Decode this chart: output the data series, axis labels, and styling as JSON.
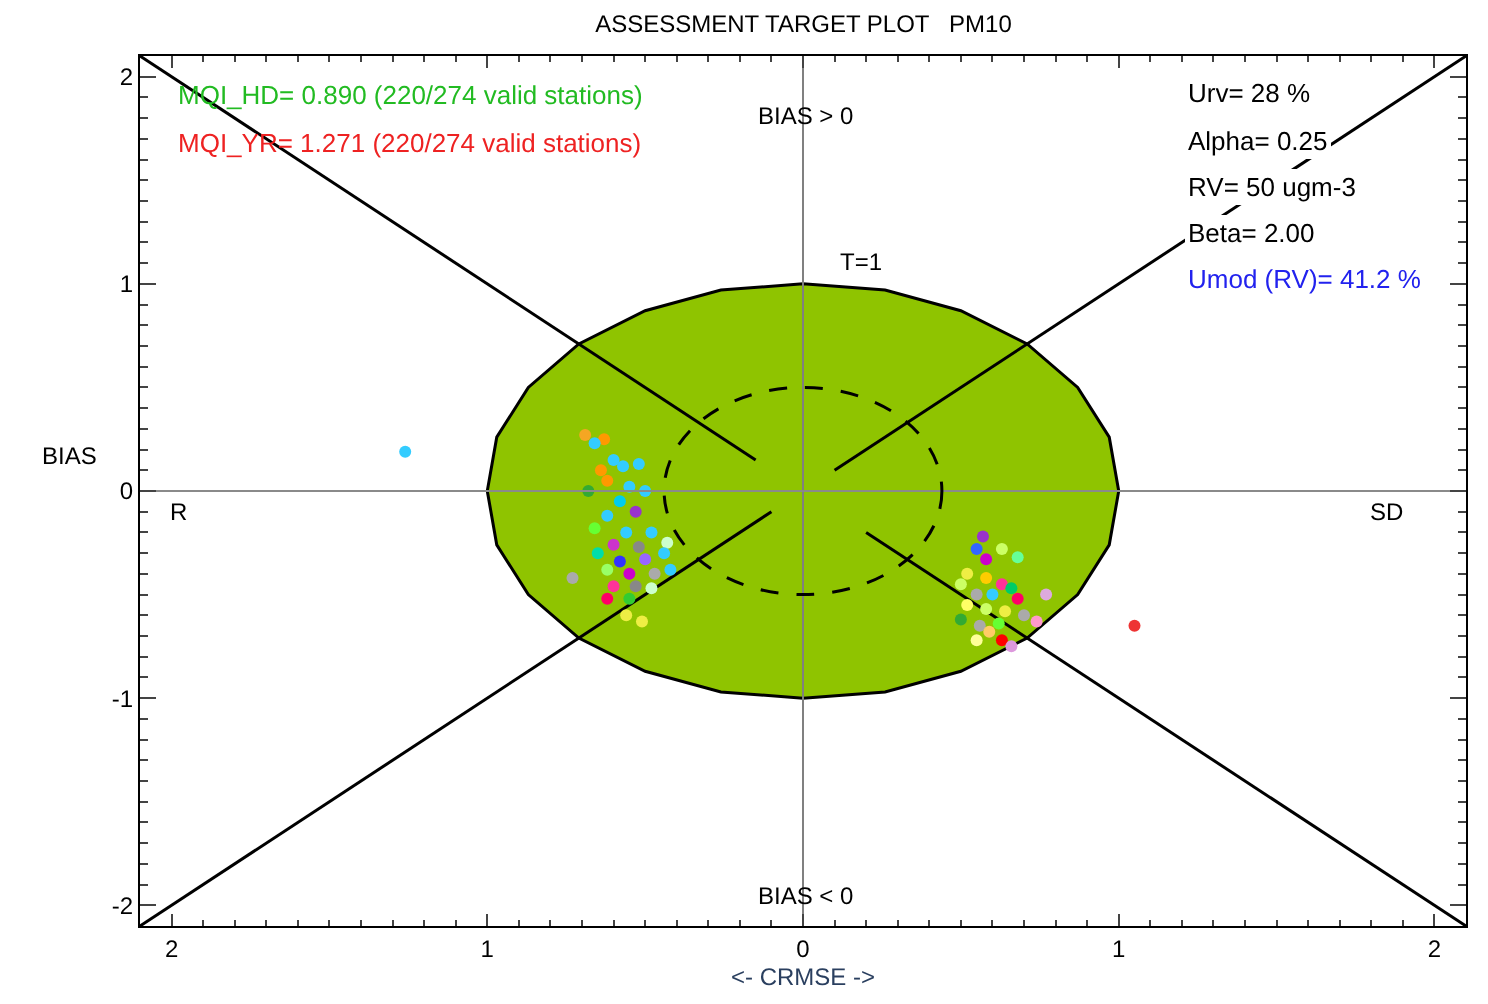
{
  "chart_data": {
    "type": "scatter",
    "title": "ASSESSMENT TARGET PLOT   PM10",
    "xlabel": "<- CRMSE ->",
    "ylabel": "BIAS",
    "annotations": [
      "MQI_HD= 0.890 (220/274 valid stations)",
      "MQI_YR= 1.271 (220/274 valid stations)",
      "BIAS > 0",
      "T=1",
      "R",
      "SD",
      "BIAS < 0",
      "Urv= 28 %",
      "Alpha= 0.25",
      "RV= 50 ugm-3",
      "Beta= 2.00",
      "Umod (RV)= 41.2 %"
    ],
    "xlim": [
      -2.1,
      2.1
    ],
    "ylim": [
      -2.1,
      2.1
    ],
    "xticks": [
      {
        "value": -2,
        "label": "2"
      },
      {
        "value": -1,
        "label": "1"
      },
      0,
      1,
      2
    ],
    "yticks": [
      -2,
      -1,
      0,
      1,
      2
    ],
    "ref_lines": [
      {
        "axis": "x",
        "value": 0,
        "color": "#808080"
      },
      {
        "axis": "y",
        "value": 0,
        "color": "#8a8a8a"
      }
    ],
    "series": [
      {
        "type": "area",
        "color": "#8fc400",
        "x": [
          1,
          0.97,
          0.87,
          0.71,
          0.5,
          0.26,
          0,
          -0.26,
          -0.5,
          -0.71,
          -0.87,
          -0.97,
          -1,
          -0.97,
          -0.87,
          -0.71,
          -0.5,
          -0.26,
          0,
          0.26,
          0.5,
          0.71,
          0.87,
          0.97,
          1
        ],
        "values": [
          0,
          0.26,
          0.5,
          0.71,
          0.87,
          0.97,
          1,
          0.97,
          0.87,
          0.71,
          0.5,
          0.26,
          0,
          -0.26,
          -0.5,
          -0.71,
          -0.87,
          -0.97,
          -1,
          -0.97,
          -0.87,
          -0.71,
          -0.5,
          -0.26,
          0
        ]
      },
      {
        "type": "line",
        "marker": "none",
        "color": "#000000",
        "x": [
          -2.1,
          -0.15
        ],
        "values": [
          2.1,
          0.15
        ]
      },
      {
        "type": "line",
        "marker": "none",
        "color": "#000000",
        "x": [
          0.1,
          2.1
        ],
        "values": [
          0.1,
          2.1
        ]
      },
      {
        "type": "line",
        "marker": "none",
        "color": "#000000",
        "x": [
          -2.1,
          -0.1
        ],
        "values": [
          -2.1,
          -0.1
        ]
      },
      {
        "type": "line",
        "marker": "none",
        "color": "#000000",
        "x": [
          0.2,
          2.1
        ],
        "values": [
          -0.2,
          -2.1
        ]
      },
      {
        "marker": "circle",
        "x": [
          -0.69,
          -0.63,
          -0.66,
          -0.6,
          -0.64,
          -0.57,
          -0.52,
          -0.62,
          -0.68,
          -0.55,
          -0.5,
          -0.58,
          -0.53,
          -0.62,
          -0.66,
          -0.56,
          -0.48,
          -0.6,
          -0.52,
          -0.43,
          -0.65,
          -0.58,
          -0.5,
          -0.44,
          -0.62,
          -0.55,
          -0.47,
          -0.73,
          -0.6,
          -0.53,
          -0.48,
          -0.62,
          -0.55,
          -0.56,
          -0.51,
          -0.42,
          0.57,
          0.63,
          0.55,
          0.58,
          0.68,
          0.52,
          0.58,
          0.63,
          0.5,
          0.55,
          0.6,
          0.66,
          0.68,
          0.52,
          0.58,
          0.64,
          0.77,
          0.5,
          0.56,
          0.62,
          0.7,
          0.74,
          0.55,
          0.63,
          0.66,
          0.59,
          -1.26,
          1.05
        ],
        "values": [
          0.27,
          0.25,
          0.23,
          0.15,
          0.1,
          0.12,
          0.13,
          0.05,
          0.0,
          0.02,
          0.0,
          -0.05,
          -0.1,
          -0.12,
          -0.18,
          -0.2,
          -0.2,
          -0.26,
          -0.27,
          -0.25,
          -0.3,
          -0.34,
          -0.33,
          -0.3,
          -0.38,
          -0.4,
          -0.4,
          -0.42,
          -0.46,
          -0.46,
          -0.47,
          -0.52,
          -0.52,
          -0.6,
          -0.63,
          -0.38,
          -0.22,
          -0.28,
          -0.28,
          -0.33,
          -0.32,
          -0.4,
          -0.42,
          -0.45,
          -0.45,
          -0.5,
          -0.5,
          -0.47,
          -0.52,
          -0.55,
          -0.57,
          -0.58,
          -0.5,
          -0.62,
          -0.65,
          -0.64,
          -0.6,
          -0.63,
          -0.72,
          -0.72,
          -0.75,
          -0.68,
          0.19,
          -0.65
        ],
        "colors": [
          "#f5a623",
          "#ff9900",
          "#33ccff",
          "#33ccff",
          "#ff9900",
          "#33ccff",
          "#33ccff",
          "#ff9900",
          "#33aa33",
          "#33ccff",
          "#33ccff",
          "#00ccee",
          "#9933cc",
          "#33ccff",
          "#66ff33",
          "#33ccff",
          "#33ccff",
          "#cc33cc",
          "#888888",
          "#ccffcc",
          "#00ddaa",
          "#3333ff",
          "#9966ff",
          "#33ccff",
          "#99ff66",
          "#cc00cc",
          "#aaaaaa",
          "#aaaaaa",
          "#ff3399",
          "#888888",
          "#ccffcc",
          "#ff0066",
          "#33cc33",
          "#eeee44",
          "#eeee44",
          "#33ccff",
          "#9933cc",
          "#ccff66",
          "#3366ff",
          "#cc00cc",
          "#66ff99",
          "#eeee44",
          "#ffcc00",
          "#ff3399",
          "#ccff66",
          "#aaaaaa",
          "#33ccff",
          "#00cc66",
          "#ff0066",
          "#ffff66",
          "#ccff66",
          "#eeee44",
          "#ddaadd",
          "#33aa33",
          "#aaaaaa",
          "#66ff33",
          "#aaaaaa",
          "#ff99cc",
          "#ffff99",
          "#ff0000",
          "#dd99dd",
          "#ffcc66",
          "#33ccff",
          "#ee3333"
        ]
      }
    ]
  }
}
